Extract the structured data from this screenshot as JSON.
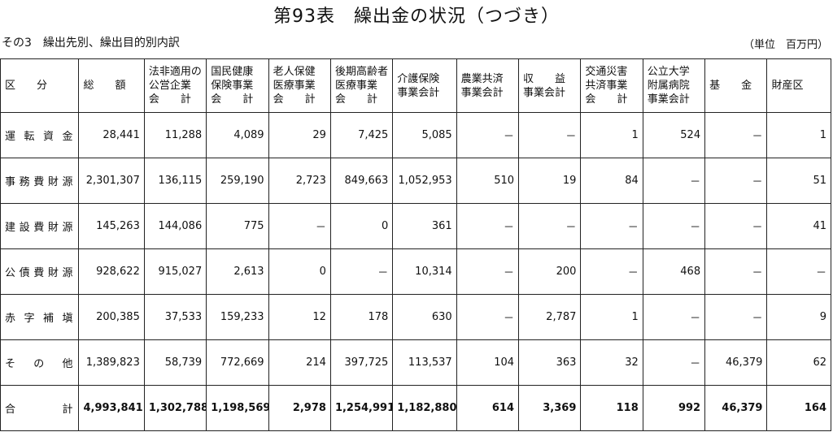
{
  "title": "第93表　繰出金の状況（つづき）",
  "subtitle": "その3　繰出先別、繰出目的別内訳",
  "unit": "（単位　百万円）",
  "table": {
    "headers": [
      [
        "区　　分"
      ],
      [
        "総　　額"
      ],
      [
        "法非適用の",
        "公営企業",
        "会　　計"
      ],
      [
        "国民健康",
        "保険事業",
        "会　　計"
      ],
      [
        "老人保健",
        "医療事業",
        "会　　計"
      ],
      [
        "後期高齢者",
        "医療事業",
        "会　　計"
      ],
      [
        "介護保険",
        "事業会計"
      ],
      [
        "農業共済",
        "事業会計"
      ],
      [
        "収　　益",
        "事業会計"
      ],
      [
        "交通災害",
        "共済事業",
        "会　　計"
      ],
      [
        "公立大学",
        "附属病院",
        "事業会計"
      ],
      [
        "基　　金"
      ],
      [
        "財産区"
      ]
    ],
    "rows": [
      {
        "label": "運転資金",
        "cells": [
          "28,441",
          "11,288",
          "4,089",
          "29",
          "7,425",
          "5,085",
          "－",
          "－",
          "1",
          "524",
          "－",
          "1"
        ]
      },
      {
        "label": "事務費財源",
        "cells": [
          "2,301,307",
          "136,115",
          "259,190",
          "2,723",
          "849,663",
          "1,052,953",
          "510",
          "19",
          "84",
          "－",
          "－",
          "51"
        ]
      },
      {
        "label": "建設費財源",
        "cells": [
          "145,263",
          "144,086",
          "775",
          "－",
          "0",
          "361",
          "－",
          "－",
          "－",
          "－",
          "－",
          "41"
        ]
      },
      {
        "label": "公債費財源",
        "cells": [
          "928,622",
          "915,027",
          "2,613",
          "0",
          "－",
          "10,314",
          "－",
          "200",
          "－",
          "468",
          "－",
          "－"
        ]
      },
      {
        "label": "赤字補塡",
        "cells": [
          "200,385",
          "37,533",
          "159,233",
          "12",
          "178",
          "630",
          "－",
          "2,787",
          "1",
          "－",
          "－",
          "9"
        ]
      },
      {
        "label": "そ の 他",
        "cells": [
          "1,389,823",
          "58,739",
          "772,669",
          "214",
          "397,725",
          "113,537",
          "104",
          "363",
          "32",
          "－",
          "46,379",
          "62"
        ]
      },
      {
        "label": "合　　計",
        "cells": [
          "4,993,841",
          "1,302,788",
          "1,198,569",
          "2,978",
          "1,254,991",
          "1,182,880",
          "614",
          "3,369",
          "118",
          "992",
          "46,379",
          "164"
        ]
      }
    ]
  }
}
